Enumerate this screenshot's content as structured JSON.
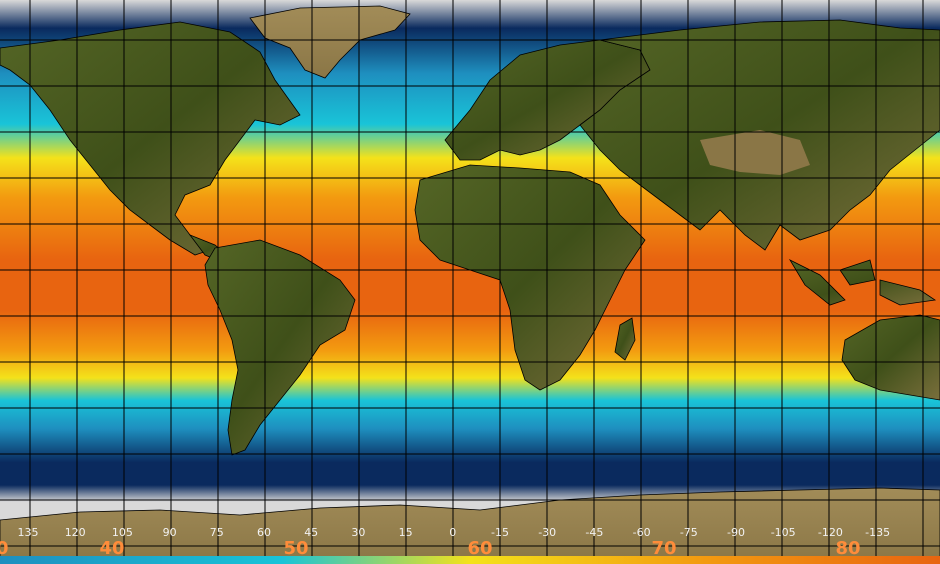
{
  "longitude_labels": [
    "135",
    "120",
    "105",
    "90",
    "75",
    "60",
    "45",
    "30",
    "15",
    "0",
    "-15",
    "-30",
    "-45",
    "-60",
    "-75",
    "-90",
    "-105",
    "-120",
    "-135"
  ],
  "temperature_labels": [
    "40",
    "50",
    "60",
    "70",
    "80"
  ],
  "edge_label": "0",
  "colors": {
    "ice": "#d9d9d9",
    "deep_cold": "#0a2a5e",
    "cold": "#1e8fbf",
    "cool": "#19c4d8",
    "mild": "#f4e21a",
    "warm": "#f39a10",
    "hot": "#e86410",
    "land_dark": "#4a5a1e",
    "land_tan": "#9b8650",
    "grid": "#000000"
  }
}
